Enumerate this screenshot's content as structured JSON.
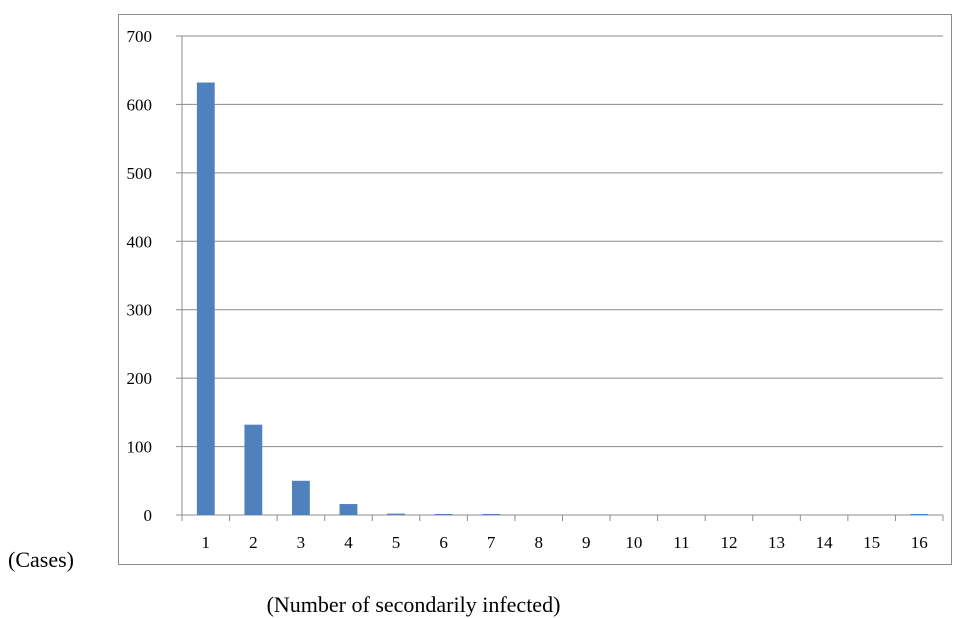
{
  "chart_data": {
    "type": "bar",
    "categories": [
      "1",
      "2",
      "3",
      "4",
      "5",
      "6",
      "7",
      "8",
      "9",
      "10",
      "11",
      "12",
      "13",
      "14",
      "15",
      "16"
    ],
    "values": [
      632,
      132,
      50,
      16,
      2,
      1,
      1,
      0,
      0,
      0,
      0,
      0,
      0,
      0,
      0,
      1
    ],
    "xlabel": "(Number of secondarily infected)",
    "ylabel": "(Cases)",
    "ylim": [
      0,
      700
    ],
    "yticks": [
      "0",
      "100",
      "200",
      "300",
      "400",
      "500",
      "600",
      "700"
    ],
    "grid": true,
    "legend": "none",
    "colors": {
      "bar": "#4f81bd",
      "grid": "#8c8c8c",
      "axis": "#8c8c8c"
    }
  }
}
